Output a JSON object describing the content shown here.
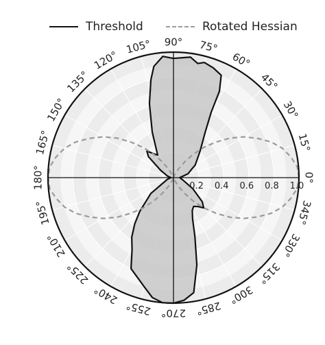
{
  "chart_data": {
    "type": "polar",
    "angle_ticks": [
      "0°",
      "15°",
      "30°",
      "45°",
      "60°",
      "75°",
      "90°",
      "105°",
      "120°",
      "135°",
      "150°",
      "165°",
      "180°",
      "195°",
      "210°",
      "225°",
      "240°",
      "255°",
      "270°",
      "285°",
      "300°",
      "315°",
      "330°",
      "345°"
    ],
    "radial_ticks": [
      "0.2",
      "0.4",
      "0.6",
      "0.8",
      "1.0"
    ],
    "rlim": [
      0,
      1.0
    ],
    "legend": {
      "placement": "top",
      "entries": [
        "Threshold",
        "Rotated Hessian"
      ]
    },
    "series": [
      {
        "name": "Threshold",
        "style": "solid",
        "color": "#111111",
        "fill": "#c8c8c8",
        "theta_deg": [
          0,
          15,
          25,
          30,
          45,
          55,
          60,
          62,
          65,
          70,
          75,
          78,
          82,
          90,
          95,
          100,
          103,
          108,
          115,
          125,
          130,
          135,
          140,
          150,
          165,
          180,
          195,
          215,
          225,
          230,
          235,
          240,
          245,
          255,
          260,
          265,
          270,
          275,
          280,
          285,
          290,
          295,
          300,
          305,
          310,
          315,
          320,
          330,
          345,
          360
        ],
        "r": [
          0.05,
          0.12,
          0.16,
          0.2,
          0.3,
          0.44,
          0.6,
          0.78,
          0.9,
          0.93,
          0.95,
          0.93,
          0.97,
          0.95,
          0.97,
          0.9,
          0.8,
          0.62,
          0.4,
          0.22,
          0.25,
          0.3,
          0.26,
          0.12,
          0.05,
          0.02,
          0.05,
          0.22,
          0.38,
          0.48,
          0.58,
          0.66,
          0.8,
          0.9,
          0.97,
          1.0,
          1.0,
          0.98,
          0.93,
          0.72,
          0.5,
          0.36,
          0.3,
          0.28,
          0.3,
          0.34,
          0.3,
          0.18,
          0.08,
          0.05
        ]
      },
      {
        "name": "Rotated Hessian",
        "style": "dashed",
        "color": "#9a9a9a",
        "theta_deg": [
          0,
          5,
          10,
          15,
          20,
          25,
          30,
          35,
          40,
          45,
          50,
          55,
          60,
          70,
          90,
          110,
          120,
          125,
          130,
          135,
          140,
          145,
          150,
          155,
          160,
          165,
          170,
          175,
          180,
          185,
          190,
          195,
          200,
          205,
          210,
          215,
          220,
          225,
          230,
          235,
          240,
          250,
          270,
          290,
          300,
          305,
          310,
          315,
          320,
          325,
          330,
          335,
          340,
          345,
          350,
          355,
          360
        ],
        "r": [
          1.0,
          0.99,
          0.95,
          0.9,
          0.83,
          0.74,
          0.65,
          0.55,
          0.44,
          0.34,
          0.24,
          0.15,
          0.08,
          0.02,
          0.0,
          0.02,
          0.08,
          0.15,
          0.24,
          0.34,
          0.44,
          0.55,
          0.65,
          0.74,
          0.83,
          0.9,
          0.95,
          0.99,
          1.0,
          0.99,
          0.95,
          0.9,
          0.83,
          0.74,
          0.65,
          0.55,
          0.44,
          0.34,
          0.24,
          0.15,
          0.08,
          0.02,
          0.0,
          0.02,
          0.08,
          0.15,
          0.24,
          0.34,
          0.44,
          0.55,
          0.65,
          0.74,
          0.83,
          0.9,
          0.95,
          0.99,
          1.0
        ]
      }
    ]
  }
}
